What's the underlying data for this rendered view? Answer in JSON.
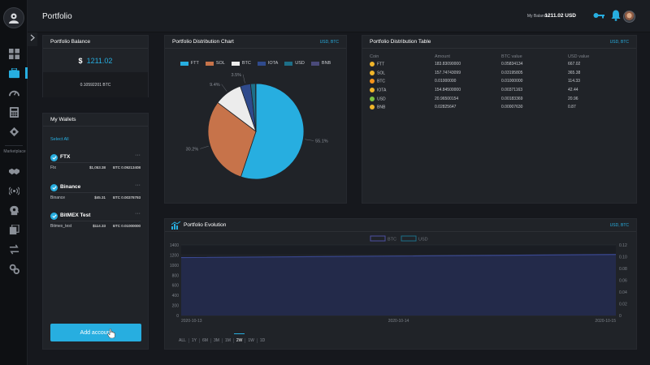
{
  "header": {
    "title": "Portfolio",
    "balance_label": "My Balance",
    "balance_value": "1211.02 USD"
  },
  "sidebar": {
    "section_label": "Marketplace"
  },
  "balance_card": {
    "title": "Portfolio Balance",
    "currency_symbol": "$",
    "usd_value": "1211.02",
    "btc_value": "0.10592201 BTC"
  },
  "wallets_card": {
    "title": "My Wallets",
    "select_all": "Select All",
    "wallets": [
      {
        "name": "FTX",
        "account": "Ftx",
        "usd": "$1,053.38",
        "btc": "BTC 0.09213408"
      },
      {
        "name": "Binance",
        "account": "Binance",
        "usd": "$45.31",
        "btc": "BTC 0.00378793"
      },
      {
        "name": "BitMEX Test",
        "account": "Bitmex_test",
        "usd": "$114.33",
        "btc": "BTC 0.01000000"
      }
    ],
    "add_button": "Add account"
  },
  "distribution_chart": {
    "title": "Portfolio Distribution Chart",
    "currency_tag": "USD, BTC",
    "legend": [
      "FTT",
      "SOL",
      "BTC",
      "IOTA",
      "USD",
      "BNB"
    ],
    "slice_labels": {
      "ftt": "55.1%",
      "sol": "30.2%",
      "btc": "9.4%",
      "iota": "3.5%"
    }
  },
  "distribution_table": {
    "title": "Portfolio Distribution Table",
    "currency_tag": "USD, BTC",
    "columns": [
      "Coin",
      "Amount",
      "BTC value",
      "USD value"
    ],
    "rows": [
      {
        "coin": "FTT",
        "amount": "183.83090000",
        "btc": "0.05834134",
        "usd": "667.02"
      },
      {
        "coin": "SOL",
        "amount": "157.74743099",
        "btc": "0.03195805",
        "usd": "365.38"
      },
      {
        "coin": "BTC",
        "amount": "0.01000000",
        "btc": "0.01000000",
        "usd": "114.33"
      },
      {
        "coin": "IOTA",
        "amount": "154.84500000",
        "btc": "0.00371163",
        "usd": "42.44"
      },
      {
        "coin": "USD",
        "amount": "20.96500154",
        "btc": "0.00183369",
        "usd": "20.96"
      },
      {
        "coin": "BNB",
        "amount": "0.02825647",
        "btc": "0.00007630",
        "usd": "0.87"
      }
    ]
  },
  "evolution": {
    "title": "Portfolio Evolution",
    "currency_tag": "USD, BTC",
    "ranges": [
      "ALL",
      "1Y",
      "6M",
      "3M",
      "1M",
      "2W",
      "1W",
      "1D"
    ],
    "active_range": "2W"
  },
  "colors": {
    "accent": "#27aee0",
    "ftt": "#27aee0",
    "sol": "#c7734a",
    "btc": "#ececec",
    "iota": "#2f4a8c",
    "usd": "#1d6f88",
    "bnb": "#4a4a7a"
  },
  "chart_data": [
    {
      "type": "pie",
      "title": "Portfolio Distribution Chart",
      "categories": [
        "FTT",
        "SOL",
        "BTC",
        "IOTA",
        "USD",
        "BNB"
      ],
      "values": [
        55.1,
        30.2,
        9.4,
        3.5,
        1.7,
        0.1
      ],
      "labels_shown": [
        "55.1%",
        "30.2%",
        "9.4%",
        "3.5%"
      ]
    },
    {
      "type": "area",
      "title": "Portfolio Evolution",
      "x": [
        "2020-10-13",
        "2020-10-14",
        "2020-10-15"
      ],
      "series": [
        {
          "name": "BTC",
          "axis": "right",
          "values": [
            0.106,
            0.106,
            0.106
          ]
        },
        {
          "name": "USD",
          "axis": "left",
          "values": [
            1150,
            1180,
            1211
          ]
        }
      ],
      "ylim": [
        0,
        1400
      ],
      "y2lim": [
        0,
        0.12
      ],
      "yticks": [
        0,
        200,
        400,
        600,
        800,
        1000,
        1200,
        1400
      ],
      "y2ticks": [
        "0",
        "0.02",
        "0.04",
        "0.06",
        "0.08",
        "0.10",
        "0.12"
      ],
      "grid": true,
      "legend_position": "top-center"
    }
  ]
}
